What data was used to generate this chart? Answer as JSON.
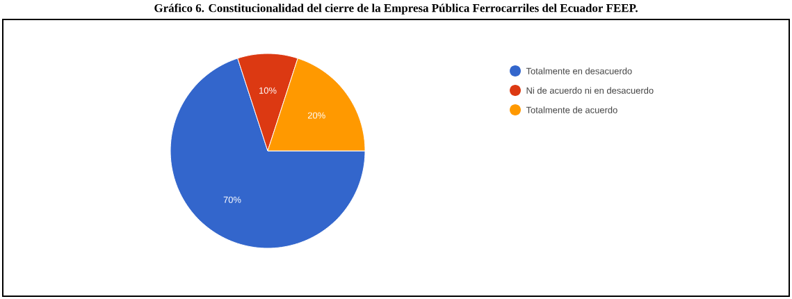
{
  "chart_data": {
    "type": "pie",
    "title": "Gráfico 6. Constitucionalidad del cierre de la Empresa Pública Ferrocarriles del Ecuador FEEP.",
    "categories": [
      "Totalmente en desacuerdo",
      "Ni de acuerdo ni en desacuerdo",
      "Totalmente de acuerdo"
    ],
    "values": [
      70,
      10,
      20
    ],
    "colors": [
      "#3366cc",
      "#dc3912",
      "#ff9900"
    ],
    "value_labels": [
      "70%",
      "10%",
      "20%"
    ],
    "legend": "top right"
  }
}
